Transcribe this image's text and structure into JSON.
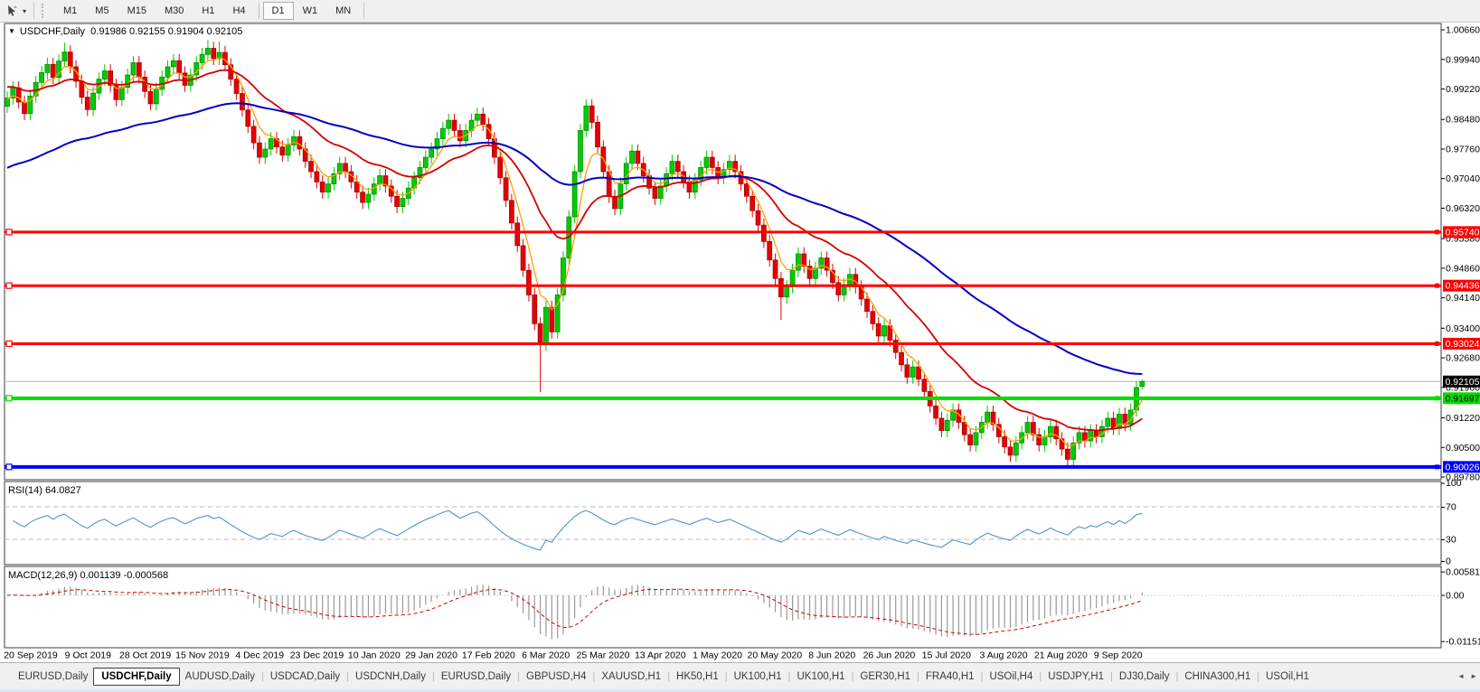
{
  "icons": {
    "caret": "▾",
    "collapse": "▼",
    "scroll_left": "◄",
    "scroll_right": "►"
  },
  "toolbar": {
    "timeframes": [
      "M1",
      "M5",
      "M15",
      "M30",
      "H1",
      "H4",
      "D1",
      "W1",
      "MN"
    ],
    "active_timeframe": "D1"
  },
  "chart_title": {
    "symbol": "USDCHF,Daily",
    "ohlc": "0.91986 0.92155 0.91904 0.92105"
  },
  "tabs": [
    {
      "label": "EURUSD,Daily",
      "active": false
    },
    {
      "label": "USDCHF,Daily",
      "active": true
    },
    {
      "label": "AUDUSD,Daily",
      "active": false
    },
    {
      "label": "USDCAD,Daily",
      "active": false
    },
    {
      "label": "USDCNH,Daily",
      "active": false
    },
    {
      "label": "EURUSD,Daily",
      "active": false
    },
    {
      "label": "GBPUSD,H4",
      "active": false
    },
    {
      "label": "XAUUSD,H1",
      "active": false
    },
    {
      "label": "HK50,H1",
      "active": false
    },
    {
      "label": "UK100,H1",
      "active": false
    },
    {
      "label": "UK100,H1",
      "active": false
    },
    {
      "label": "GER30,H1",
      "active": false
    },
    {
      "label": "FRA40,H1",
      "active": false
    },
    {
      "label": "USOil,H4",
      "active": false
    },
    {
      "label": "USDJPY,H1",
      "active": false
    },
    {
      "label": "DJ30,Daily",
      "active": false
    },
    {
      "label": "CHINA300,H1",
      "active": false
    },
    {
      "label": "USOil,H1",
      "active": false
    }
  ],
  "colors": {
    "bull": "#00cc00",
    "bull_edge": "#008000",
    "bear": "#e60000",
    "bear_edge": "#990000",
    "ma_fast": "#ffa000",
    "ma_medium": "#d40000",
    "ma_slow": "#0000c8",
    "resistance": "#ff0000",
    "support_green": "#00dd00",
    "support_blue": "#0000ff",
    "current_line": "#b4b4b4",
    "rsi_line": "#4f94cd",
    "macd_hist": "#9a9a9a",
    "macd_signal": "#d40000",
    "level_dash": "#bdbdbd",
    "frame": "#3c3c3c"
  },
  "chart_data": {
    "type": "candlestick",
    "symbol": "USDCHF",
    "timeframe": "Daily",
    "ohlc_display": {
      "open": "0.91986",
      "high": "0.92155",
      "low": "0.91904",
      "close": "0.92105"
    },
    "first_open": 0.988,
    "default_wick": 0.0016,
    "closes": [
      0.99,
      0.9925,
      0.989,
      0.9862,
      0.9905,
      0.9938,
      0.9962,
      0.9982,
      0.995,
      0.999,
      1.0012,
      0.9976,
      0.9941,
      0.9902,
      0.9872,
      0.9912,
      0.9946,
      0.9966,
      0.9931,
      0.9896,
      0.9926,
      0.9956,
      0.9986,
      0.9951,
      0.9916,
      0.9886,
      0.9921,
      0.9951,
      0.9976,
      0.9991,
      0.9961,
      0.9931,
      0.9956,
      0.9986,
      1.0006,
      1.0021,
      0.9996,
      1.0011,
      0.9981,
      0.9946,
      0.9911,
      0.9871,
      0.9831,
      0.9791,
      0.9756,
      0.9776,
      0.9801,
      0.9781,
      0.9761,
      0.9786,
      0.9806,
      0.9776,
      0.9746,
      0.9721,
      0.9696,
      0.9671,
      0.9691,
      0.9716,
      0.9741,
      0.9721,
      0.9696,
      0.9671,
      0.9646,
      0.9666,
      0.9691,
      0.9711,
      0.9686,
      0.9661,
      0.9636,
      0.9656,
      0.9681,
      0.9706,
      0.9731,
      0.9756,
      0.9776,
      0.9801,
      0.9826,
      0.9846,
      0.9821,
      0.9796,
      0.9821,
      0.9846,
      0.9861,
      0.9836,
      0.9801,
      0.9756,
      0.9706,
      0.9651,
      0.9596,
      0.9541,
      0.9481,
      0.9421,
      0.9351,
      0.9301,
      0.9391,
      0.9331,
      0.9421,
      0.9511,
      0.9611,
      0.9721,
      0.9821,
      0.9881,
      0.9841,
      0.9781,
      0.9721,
      0.9661,
      0.9631,
      0.9691,
      0.9741,
      0.9771,
      0.9741,
      0.9711,
      0.9681,
      0.9656,
      0.9686,
      0.9716,
      0.9746,
      0.9721,
      0.9696,
      0.9671,
      0.9701,
      0.9731,
      0.9756,
      0.9731,
      0.9706,
      0.9726,
      0.9746,
      0.9721,
      0.9691,
      0.9661,
      0.9626,
      0.9591,
      0.9551,
      0.9506,
      0.9461,
      0.9416,
      0.9441,
      0.9481,
      0.9521,
      0.9491,
      0.9461,
      0.9486,
      0.9511,
      0.9481,
      0.9451,
      0.9421,
      0.9446,
      0.9471,
      0.9441,
      0.9411,
      0.9381,
      0.9351,
      0.9321,
      0.9346,
      0.9311,
      0.9281,
      0.9251,
      0.9221,
      0.9246,
      0.9216,
      0.9186,
      0.9151,
      0.9121,
      0.9091,
      0.9116,
      0.9141,
      0.9111,
      0.9081,
      0.9056,
      0.9086,
      0.9111,
      0.9136,
      0.9106,
      0.9076,
      0.9051,
      0.9031,
      0.9061,
      0.9086,
      0.9111,
      0.9081,
      0.9056,
      0.9076,
      0.9101,
      0.9071,
      0.9046,
      0.9021,
      0.9061,
      0.9086,
      0.9066,
      0.9091,
      0.9076,
      0.9101,
      0.9121,
      0.9096,
      0.9131,
      0.9106,
      0.9141,
      0.9196,
      0.92105
    ],
    "special_wicks": {
      "10": {
        "h": 1.0035
      },
      "35": {
        "h": 1.0041
      },
      "37": {
        "h": 1.0038
      },
      "93": {
        "l": 0.9185
      },
      "135": {
        "l": 0.936
      },
      "185": {
        "l": 0.8998
      },
      "198": {
        "o": 0.91986,
        "h": 0.92155,
        "l": 0.91904
      }
    },
    "ma": [
      {
        "name": "fast",
        "alpha": 0.32,
        "seed": 0.9895,
        "width": 1.3
      },
      {
        "name": "medium",
        "alpha": 0.09,
        "seed": 0.993,
        "width": 1.8
      },
      {
        "name": "slow",
        "alpha": 0.03,
        "seed": 0.9725,
        "width": 2.0
      }
    ],
    "price_ticks": [
      "1.00660",
      "0.99940",
      "0.99220",
      "0.98480",
      "0.97760",
      "0.97040",
      "0.96320",
      "0.95580",
      "0.94860",
      "0.94140",
      "0.93400",
      "0.92680",
      "0.91960",
      "0.91220",
      "0.90500",
      "0.89780"
    ],
    "hlines": [
      {
        "price": 0.9574,
        "label": "0.95740",
        "kind": "resistance",
        "color_key": "resistance",
        "width": 3
      },
      {
        "price": 0.94436,
        "label": "0.94436",
        "kind": "resistance",
        "color_key": "resistance",
        "width": 3
      },
      {
        "price": 0.93024,
        "label": "0.93024",
        "kind": "resistance",
        "color_key": "resistance",
        "width": 3
      },
      {
        "price": 0.91697,
        "label": "0.91697",
        "kind": "support",
        "color_key": "support_green",
        "width": 4
      },
      {
        "price": 0.90026,
        "label": "0.90026",
        "kind": "support",
        "color_key": "support_blue",
        "width": 4
      }
    ],
    "current_price": {
      "price": 0.92105,
      "label": "0.92105"
    },
    "price_tags": [
      {
        "label": "0.95740",
        "price": 0.9574,
        "bg": "#ff0000",
        "fg": "#ffffff"
      },
      {
        "label": "0.94436",
        "price": 0.94436,
        "bg": "#ff0000",
        "fg": "#ffffff"
      },
      {
        "label": "0.93024",
        "price": 0.93024,
        "bg": "#ff0000",
        "fg": "#ffffff"
      },
      {
        "label": "0.92105",
        "price": 0.92105,
        "bg": "#000000",
        "fg": "#ffffff"
      },
      {
        "label": "0.91697",
        "price": 0.91697,
        "bg": "#00dd00",
        "fg": "#000000"
      },
      {
        "label": "0.90026",
        "price": 0.90026,
        "bg": "#0000ff",
        "fg": "#ffffff"
      }
    ],
    "rsi": {
      "label": "RSI(14) 64.0827",
      "period": 14,
      "value": 64.0827,
      "levels": [
        70,
        30
      ],
      "axis": [
        "100",
        "70",
        "30",
        "0"
      ]
    },
    "macd": {
      "label": "MACD(12,26,9) 0.001139 -0.000568",
      "fast": 12,
      "slow": 26,
      "signal": 9,
      "value_main": 0.001139,
      "value_signal": -0.000568,
      "axis": [
        {
          "label": "0.005818",
          "value": 0.005818
        },
        {
          "label": "0.00",
          "value": 0
        },
        {
          "label": "-0.011514",
          "value": -0.011514
        }
      ]
    },
    "dates": [
      "20 Sep 2019",
      "9 Oct 2019",
      "28 Oct 2019",
      "15 Nov 2019",
      "4 Dec 2019",
      "23 Dec 2019",
      "10 Jan 2020",
      "29 Jan 2020",
      "17 Feb 2020",
      "6 Mar 2020",
      "25 Mar 2020",
      "13 Apr 2020",
      "1 May 2020",
      "20 May 2020",
      "8 Jun 2020",
      "26 Jun 2020",
      "15 Jul 2020",
      "3 Aug 2020",
      "21 Aug 2020",
      "9 Sep 2020"
    ]
  }
}
